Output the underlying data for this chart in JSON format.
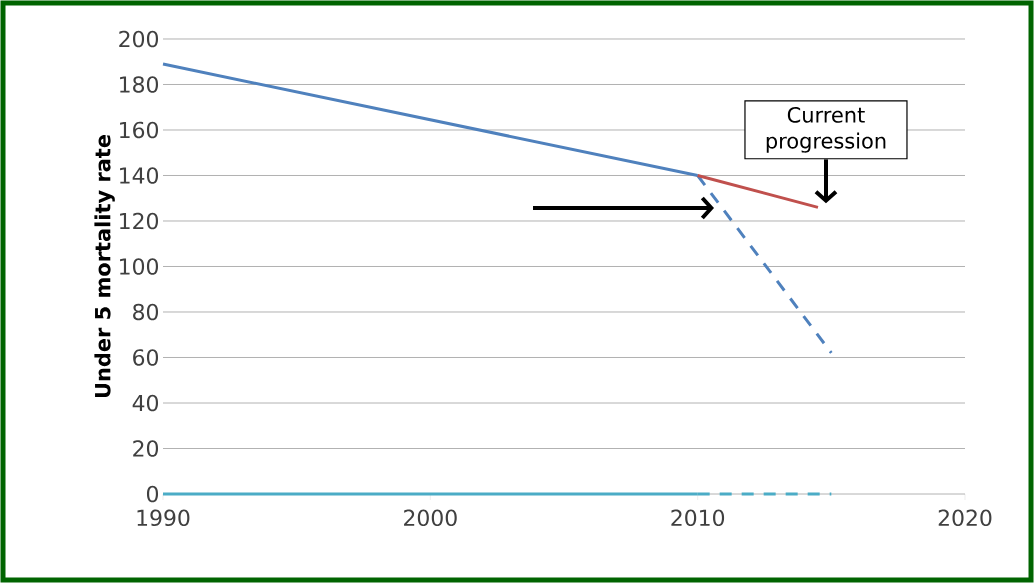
{
  "chart_data": {
    "type": "line",
    "ylabel": "Under 5 mortality rate",
    "xlim": [
      1990,
      2020
    ],
    "xticks": [
      1990,
      2000,
      2010,
      2020
    ],
    "ylim": [
      0,
      200
    ],
    "yticks": [
      0,
      20,
      40,
      60,
      80,
      100,
      120,
      140,
      160,
      180,
      200
    ],
    "grid": "y",
    "marker": "none",
    "series": [
      {
        "color": "#4f81bd",
        "x": [
          1990,
          2010
        ],
        "values": [
          189,
          140
        ],
        "line_style": "solid"
      },
      {
        "color": "#4f81bd",
        "x": [
          2010,
          2015
        ],
        "values": [
          140,
          62
        ],
        "line_style": "dashed"
      },
      {
        "color": "#c0504d",
        "x": [
          2010,
          2014.5
        ],
        "values": [
          140,
          126
        ],
        "line_style": "solid"
      },
      {
        "color": "#4bacc6",
        "x": [
          1990,
          2010
        ],
        "values": [
          0,
          0
        ],
        "line_style": "solid"
      },
      {
        "color": "#4bacc6",
        "x": [
          2010,
          2015
        ],
        "values": [
          0,
          0
        ],
        "line_style": "dashed"
      }
    ],
    "annotations": [
      {
        "text": "Current progression",
        "x": 2014.5,
        "y": 126
      }
    ]
  }
}
